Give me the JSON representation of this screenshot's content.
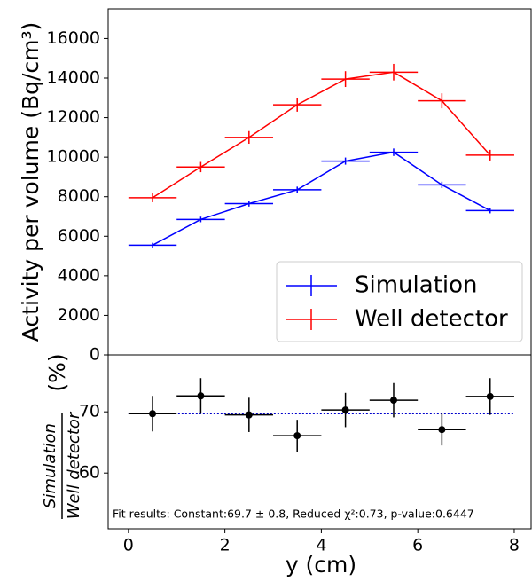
{
  "chart_data": [
    {
      "type": "errorbar",
      "y_label": "Activity per volume (Bq/cm³)",
      "x": [
        0.5,
        1.5,
        2.5,
        3.5,
        4.5,
        5.5,
        6.5,
        7.5
      ],
      "xerr": 0.5,
      "series": [
        {
          "name": "Simulation",
          "color": "#0000ff",
          "values": [
            5550,
            6850,
            7650,
            8350,
            9800,
            10250,
            8600,
            7300
          ],
          "yerr": [
            120,
            140,
            150,
            160,
            180,
            190,
            160,
            140
          ]
        },
        {
          "name": "Well detector",
          "color": "#ff0000",
          "values": [
            7950,
            9500,
            11000,
            12650,
            13950,
            14300,
            12850,
            10100
          ],
          "yerr": [
            230,
            260,
            320,
            350,
            400,
            420,
            380,
            270
          ]
        }
      ],
      "xlim": [
        -0.42,
        8.35
      ],
      "ylim": [
        0,
        17500
      ],
      "yticks": [
        0,
        2000,
        4000,
        6000,
        8000,
        10000,
        12000,
        14000,
        16000
      ],
      "legend": "lower right"
    },
    {
      "type": "errorbar",
      "y_label_numerator": "Simulation",
      "y_label_denominator": "Well detector",
      "y_label_unit": "(%)",
      "x_label": "y (cm)",
      "annotation": "Fit results: Constant:69.7 ± 0.8, Reduced χ²:0.73, p-value:0.6447",
      "x": [
        0.5,
        1.5,
        2.5,
        3.5,
        4.5,
        5.5,
        6.5,
        7.5
      ],
      "xerr": 0.5,
      "series": [
        {
          "color": "#000000",
          "values": [
            69.7,
            72.6,
            69.5,
            66.1,
            70.3,
            71.9,
            67.1,
            72.5
          ],
          "yerr": [
            2.9,
            2.9,
            2.8,
            2.6,
            2.8,
            2.8,
            2.6,
            3.0
          ]
        }
      ],
      "fit_line": {
        "value": 69.7,
        "color": "#0000cc"
      },
      "xlim": [
        -0.42,
        8.35
      ],
      "ylim": [
        50.9,
        79.3
      ],
      "xticks": [
        0,
        2,
        4,
        6,
        8
      ],
      "yticks": [
        60,
        70
      ]
    }
  ]
}
